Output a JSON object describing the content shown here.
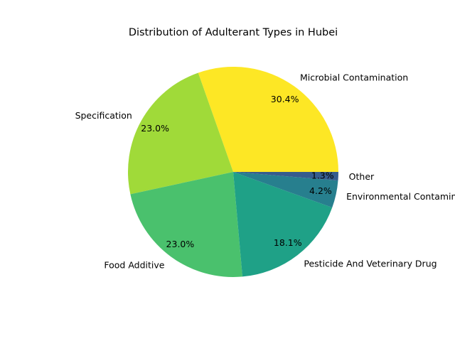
{
  "chart_data": {
    "type": "pie",
    "title": "Distribution of Adulterant Types in Hubei",
    "categories": [
      "Microbial Contamination",
      "Specification",
      "Food Additive",
      "Pesticide And Veterinary Drug",
      "Environmental Contaminant",
      "Other"
    ],
    "values": [
      30.4,
      23.0,
      23.0,
      18.1,
      4.2,
      1.3
    ],
    "percent_labels": [
      "30.4%",
      "23.0%",
      "23.0%",
      "18.1%",
      "4.2%",
      "1.3%"
    ],
    "colors": [
      "#fde725",
      "#a0da39",
      "#4ac16d",
      "#1fa187",
      "#277f8e",
      "#365c8d"
    ],
    "start_angle_deg": 0,
    "direction": "counterclockwise",
    "legend": "none"
  }
}
